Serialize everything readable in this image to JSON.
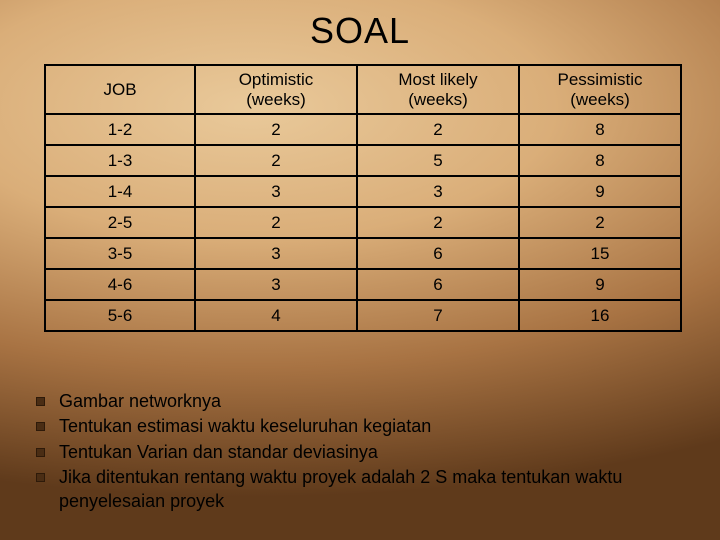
{
  "title": "SOAL",
  "table": {
    "columns": [
      "JOB",
      "Optimistic\n(weeks)",
      "Most likely\n(weeks)",
      "Pessimistic\n(weeks)"
    ],
    "rows": [
      [
        "1-2",
        "2",
        "2",
        "8"
      ],
      [
        "1-3",
        "2",
        "5",
        "8"
      ],
      [
        "1-4",
        "3",
        "3",
        "9"
      ],
      [
        "2-5",
        "2",
        "2",
        "2"
      ],
      [
        "3-5",
        "3",
        "6",
        "15"
      ],
      [
        "4-6",
        "3",
        "6",
        "9"
      ],
      [
        "5-6",
        "4",
        "7",
        "16"
      ]
    ]
  },
  "bullets": [
    "Gambar networknya",
    "Tentukan estimasi waktu keseluruhan kegiatan",
    "Tentukan Varian dan standar deviasinya",
    "Jika ditentukan rentang waktu proyek adalah 2 S maka tentukan waktu penyelesaian proyek"
  ],
  "colors": {
    "bullet_square": "#4a2d14",
    "border": "#000000",
    "text": "#000000"
  }
}
